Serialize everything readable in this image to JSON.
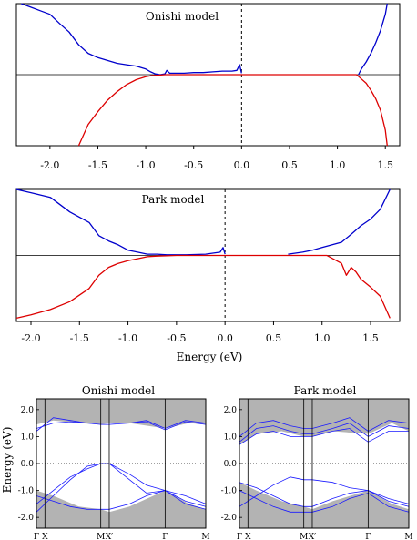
{
  "chart_data": [
    {
      "type": "line",
      "title": "Onishi model",
      "xlabel": "",
      "xlim": [
        -2.35,
        1.65
      ],
      "xticks": [
        "-2.0",
        "-1.5",
        "-1.0",
        "-0.5",
        "0.0",
        "0.5",
        "1.0",
        "1.5"
      ],
      "xtick_values": [
        -2.0,
        -1.5,
        -1.0,
        -0.5,
        0.0,
        0.5,
        1.0,
        1.5
      ],
      "ylim": [
        -1,
        1
      ],
      "baseline": 0,
      "fermi_level": 0.0,
      "series": [
        {
          "color": "#0000cc",
          "x": [
            -2.3,
            -2.2,
            -2.1,
            -2.0,
            -1.9,
            -1.8,
            -1.7,
            -1.6,
            -1.5,
            -1.4,
            -1.3,
            -1.2,
            -1.1,
            -1.0,
            -0.95,
            -0.9,
            -0.85,
            -0.8,
            -0.78,
            -0.75,
            -0.7,
            -0.6,
            -0.5,
            -0.4,
            -0.3,
            -0.2,
            -0.1,
            -0.05,
            -0.02,
            0.0
          ],
          "y": [
            1.0,
            0.95,
            0.9,
            0.85,
            0.72,
            0.6,
            0.42,
            0.3,
            0.24,
            0.2,
            0.16,
            0.14,
            0.12,
            0.08,
            0.04,
            0.01,
            0.0,
            0.01,
            0.06,
            0.02,
            0.02,
            0.02,
            0.03,
            0.03,
            0.04,
            0.05,
            0.05,
            0.06,
            0.14,
            0.02
          ]
        },
        {
          "color": "#0000cc",
          "x": [
            1.22,
            1.25,
            1.3,
            1.35,
            1.4,
            1.45,
            1.5,
            1.52
          ],
          "y": [
            0.0,
            0.08,
            0.18,
            0.3,
            0.45,
            0.62,
            0.85,
            1.0
          ]
        },
        {
          "color": "#dd0000",
          "x": [
            -1.7,
            -1.6,
            -1.5,
            -1.4,
            -1.3,
            -1.2,
            -1.1,
            -1.0,
            -0.95,
            -0.9,
            -0.8,
            -0.6,
            -0.4,
            -0.2,
            0.0,
            0.5,
            1.0,
            1.2
          ],
          "y": [
            -1.0,
            -0.7,
            -0.52,
            -0.36,
            -0.24,
            -0.14,
            -0.07,
            -0.03,
            -0.015,
            -0.01,
            0.0,
            0.0,
            0.0,
            0.0,
            0.0,
            0.0,
            0.0,
            0.0
          ]
        },
        {
          "color": "#dd0000",
          "x": [
            1.2,
            1.25,
            1.3,
            1.35,
            1.4,
            1.45,
            1.5,
            1.52
          ],
          "y": [
            0.0,
            -0.06,
            -0.12,
            -0.22,
            -0.34,
            -0.5,
            -0.78,
            -1.0
          ]
        }
      ]
    },
    {
      "type": "line",
      "title": "Park model",
      "xlabel": "Energy (eV)",
      "xlim": [
        -2.15,
        1.8
      ],
      "xticks": [
        "-2.0",
        "-1.5",
        "-1.0",
        "-0.5",
        "0.0",
        "0.5",
        "1.0",
        "1.5"
      ],
      "xtick_values": [
        -2.0,
        -1.5,
        -1.0,
        -0.5,
        0.0,
        0.5,
        1.0,
        1.5
      ],
      "ylim": [
        -1,
        1
      ],
      "baseline": 0,
      "fermi_level": 0.0,
      "series": [
        {
          "color": "#0000cc",
          "x": [
            -2.15,
            -2.0,
            -1.8,
            -1.6,
            -1.4,
            -1.3,
            -1.2,
            -1.1,
            -1.0,
            -0.9,
            -0.8,
            -0.7,
            -0.6,
            -0.4,
            -0.2,
            -0.05,
            -0.02,
            0.0
          ],
          "y": [
            1.0,
            0.95,
            0.88,
            0.66,
            0.5,
            0.3,
            0.22,
            0.16,
            0.08,
            0.05,
            0.02,
            0.02,
            0.01,
            0.01,
            0.02,
            0.05,
            0.12,
            0.02
          ]
        },
        {
          "color": "#0000cc",
          "x": [
            0.65,
            0.8,
            0.9,
            1.0,
            1.1,
            1.2,
            1.3,
            1.4,
            1.5,
            1.6,
            1.7
          ],
          "y": [
            0.02,
            0.05,
            0.08,
            0.12,
            0.16,
            0.2,
            0.32,
            0.45,
            0.55,
            0.7,
            1.0
          ]
        },
        {
          "color": "#dd0000",
          "x": [
            -2.15,
            -2.0,
            -1.8,
            -1.6,
            -1.4,
            -1.3,
            -1.2,
            -1.1,
            -1.0,
            -0.9,
            -0.8,
            -0.7,
            -0.5,
            0.0,
            0.5,
            1.0,
            1.05
          ],
          "y": [
            -0.95,
            -0.9,
            -0.82,
            -0.7,
            -0.5,
            -0.3,
            -0.18,
            -0.12,
            -0.08,
            -0.05,
            -0.02,
            -0.01,
            0.0,
            0.0,
            0.0,
            0.0,
            0.0
          ]
        },
        {
          "color": "#dd0000",
          "x": [
            1.05,
            1.1,
            1.2,
            1.25,
            1.3,
            1.35,
            1.4,
            1.5,
            1.6,
            1.7
          ],
          "y": [
            0.0,
            -0.04,
            -0.12,
            -0.3,
            -0.18,
            -0.25,
            -0.36,
            -0.48,
            -0.62,
            -0.95
          ]
        }
      ]
    },
    {
      "type": "line",
      "title": "Onishi model",
      "ylabel": "Energy (eV)",
      "ylim": [
        -2.4,
        2.4
      ],
      "yticks": [
        "2.0",
        "1.0",
        "0.0",
        "-1.0",
        "-2.0"
      ],
      "ytick_values": [
        2.0,
        1.0,
        0.0,
        -1.0,
        -2.0
      ],
      "kpoints": [
        {
          "label": "Γ",
          "pos": 0.0
        },
        {
          "label": "X",
          "pos": 0.05
        },
        {
          "label": "M",
          "pos": 0.38
        },
        {
          "label": "X′",
          "pos": 0.43
        },
        {
          "label": "Γ",
          "pos": 0.76
        },
        {
          "label": "M",
          "pos": 1.0
        }
      ],
      "fermi_level": 0.0,
      "gap_shading": {
        "upper_edge": [
          1.45,
          1.6,
          1.5,
          1.45,
          1.5,
          1.5,
          1.3,
          1.5,
          1.45
        ],
        "lower_edge": [
          -1.0,
          -1.2,
          -1.6,
          -1.7,
          -1.8,
          -1.6,
          -1.0,
          -1.5,
          -1.7
        ],
        "x": [
          0.0,
          0.1,
          0.25,
          0.38,
          0.43,
          0.55,
          0.76,
          0.9,
          1.0
        ]
      },
      "bands": [
        {
          "x": [
            0.0,
            0.1,
            0.2,
            0.3,
            0.38,
            0.43,
            0.55,
            0.65,
            0.76,
            0.88,
            1.0
          ],
          "y": [
            1.2,
            1.7,
            1.6,
            1.5,
            1.5,
            1.5,
            1.5,
            1.6,
            1.3,
            1.6,
            1.5
          ]
        },
        {
          "x": [
            0.0,
            0.1,
            0.2,
            0.3,
            0.38,
            0.43,
            0.55,
            0.65,
            0.76,
            0.88,
            1.0
          ],
          "y": [
            1.3,
            1.5,
            1.55,
            1.5,
            1.45,
            1.45,
            1.5,
            1.55,
            1.25,
            1.55,
            1.45
          ]
        },
        {
          "x": [
            0.0,
            0.1,
            0.2,
            0.3,
            0.38,
            0.43,
            0.55,
            0.65,
            0.76,
            0.88,
            1.0
          ],
          "y": [
            -1.8,
            -1.2,
            -0.6,
            -0.1,
            0.0,
            0.0,
            -0.4,
            -0.8,
            -1.0,
            -1.4,
            -1.6
          ]
        },
        {
          "x": [
            0.0,
            0.1,
            0.2,
            0.3,
            0.38,
            0.43,
            0.55,
            0.65,
            0.76,
            0.88,
            1.0
          ],
          "y": [
            -1.5,
            -1.0,
            -0.5,
            -0.2,
            0.0,
            0.0,
            -0.6,
            -1.1,
            -1.0,
            -1.2,
            -1.5
          ]
        },
        {
          "x": [
            0.0,
            0.1,
            0.2,
            0.3,
            0.38,
            0.43,
            0.55,
            0.65,
            0.76,
            0.88,
            1.0
          ],
          "y": [
            -1.2,
            -1.4,
            -1.6,
            -1.7,
            -1.7,
            -1.7,
            -1.5,
            -1.2,
            -1.0,
            -1.5,
            -1.7
          ]
        }
      ]
    },
    {
      "type": "line",
      "title": "Park model",
      "ylim": [
        -2.4,
        2.4
      ],
      "yticks": [
        "2.0",
        "1.0",
        "0.0",
        "-1.0",
        "-2.0"
      ],
      "ytick_values": [
        2.0,
        1.0,
        0.0,
        -1.0,
        -2.0
      ],
      "kpoints": [
        {
          "label": "Γ",
          "pos": 0.0
        },
        {
          "label": "X",
          "pos": 0.05
        },
        {
          "label": "M",
          "pos": 0.38
        },
        {
          "label": "X′",
          "pos": 0.43
        },
        {
          "label": "Γ",
          "pos": 0.76
        },
        {
          "label": "M",
          "pos": 1.0
        }
      ],
      "fermi_level": 0.0,
      "gap_shading": {
        "upper_edge": [
          0.7,
          1.1,
          1.2,
          1.0,
          1.0,
          1.2,
          1.1,
          1.5,
          1.2
        ],
        "lower_edge": [
          -0.7,
          -1.0,
          -1.4,
          -1.6,
          -1.7,
          -1.4,
          -1.0,
          -1.5,
          -1.7
        ],
        "x": [
          0.0,
          0.1,
          0.25,
          0.38,
          0.43,
          0.55,
          0.76,
          0.9,
          1.0
        ]
      },
      "bands": [
        {
          "x": [
            0.0,
            0.1,
            0.2,
            0.3,
            0.38,
            0.43,
            0.55,
            0.65,
            0.76,
            0.88,
            1.0
          ],
          "y": [
            1.0,
            1.5,
            1.6,
            1.4,
            1.3,
            1.3,
            1.5,
            1.7,
            1.2,
            1.6,
            1.5
          ]
        },
        {
          "x": [
            0.0,
            0.1,
            0.2,
            0.3,
            0.38,
            0.43,
            0.55,
            0.65,
            0.76,
            0.88,
            1.0
          ],
          "y": [
            0.8,
            1.3,
            1.4,
            1.2,
            1.1,
            1.1,
            1.3,
            1.5,
            1.0,
            1.4,
            1.3
          ]
        },
        {
          "x": [
            0.0,
            0.1,
            0.2,
            0.3,
            0.38,
            0.43,
            0.55,
            0.65,
            0.76,
            0.88,
            1.0
          ],
          "y": [
            0.7,
            1.1,
            1.2,
            1.0,
            1.0,
            1.0,
            1.2,
            1.3,
            0.8,
            1.2,
            1.2
          ]
        },
        {
          "x": [
            0.0,
            0.1,
            0.2,
            0.3,
            0.38,
            0.43,
            0.55,
            0.65,
            0.76,
            0.88,
            1.0
          ],
          "y": [
            -1.6,
            -1.2,
            -0.8,
            -0.5,
            -0.6,
            -0.6,
            -0.7,
            -0.9,
            -1.0,
            -1.3,
            -1.5
          ]
        },
        {
          "x": [
            0.0,
            0.1,
            0.2,
            0.3,
            0.38,
            0.43,
            0.55,
            0.65,
            0.76,
            0.88,
            1.0
          ],
          "y": [
            -0.7,
            -0.9,
            -1.2,
            -1.5,
            -1.6,
            -1.6,
            -1.3,
            -1.1,
            -1.0,
            -1.4,
            -1.6
          ]
        },
        {
          "x": [
            0.0,
            0.1,
            0.2,
            0.3,
            0.38,
            0.43,
            0.55,
            0.65,
            0.76,
            0.88,
            1.0
          ],
          "y": [
            -1.0,
            -1.3,
            -1.6,
            -1.8,
            -1.8,
            -1.8,
            -1.6,
            -1.3,
            -1.1,
            -1.6,
            -1.8
          ]
        }
      ]
    }
  ]
}
